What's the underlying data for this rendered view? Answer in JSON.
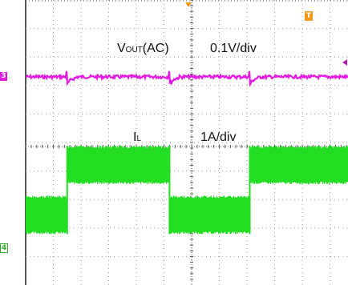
{
  "chart_data": {
    "type": "line",
    "title": "",
    "channels": [
      {
        "id": "3",
        "name": "VOUT(AC)",
        "scale": "0.1V/div",
        "color": "#e31be0",
        "description_values": {
          "baseline_div": 0,
          "spike_times_div": [
            1.7,
            5.4,
            8.3,
            11.9
          ],
          "spike_amplitude_div": 0.4
        }
      },
      {
        "id": "4",
        "name": "IL",
        "scale": "1A/div",
        "color": "#22dd22",
        "description_values": {
          "high_level_div": 2.0,
          "low_level_div": 0.8,
          "high_intervals_div": [
            [
              1.7,
              5.4
            ],
            [
              8.3,
              11.9
            ]
          ]
        }
      }
    ],
    "grid": true,
    "divisions_x": 12,
    "divisions_y": 10
  },
  "labels": {
    "vout_main": "V",
    "vout_sub": "OUT",
    "vout_rest": "(AC)",
    "vout_scale": "0.1V/div",
    "il_main": "I",
    "il_sub": "L",
    "il_scale": "1A/div",
    "ch3_marker": "3",
    "ch4_marker": "4",
    "trigger_marker": "T"
  }
}
